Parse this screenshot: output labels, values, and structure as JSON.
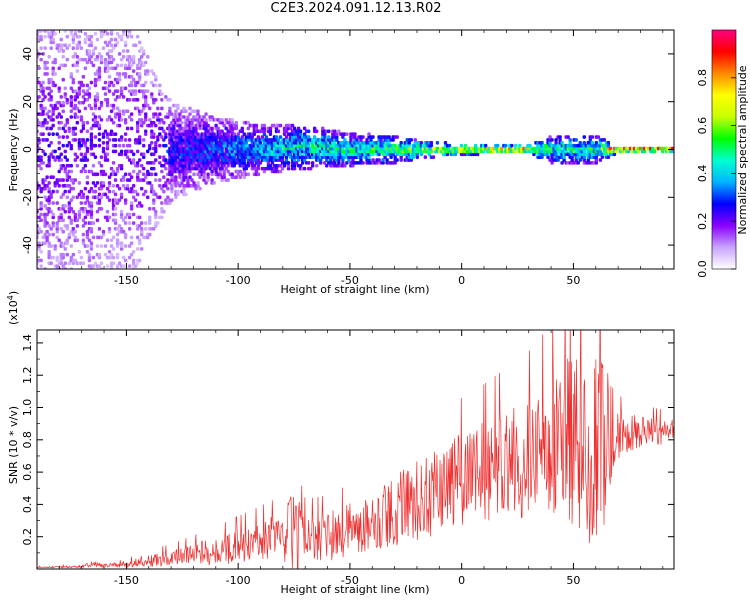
{
  "title": "C2E3.2024.091.12.13.R02",
  "chart_data": [
    {
      "type": "heatmap",
      "xlabel": "Height of straight line (km)",
      "ylabel": "Frequency (Hz)",
      "xlim": [
        -190,
        95
      ],
      "ylim": [
        -50,
        50
      ],
      "xticks": [
        -150,
        -100,
        -50,
        0,
        50
      ],
      "yticks": [
        -40,
        -20,
        0,
        20,
        40
      ],
      "colorbar": {
        "label": "Normalized spectral amplitude",
        "range": [
          0.0,
          1.0
        ],
        "ticks": [
          0.0,
          0.2,
          0.4,
          0.6,
          0.8
        ],
        "ticklabels": [
          "0.0",
          "0.2",
          "0.4",
          "0.6",
          "0.8"
        ],
        "colors": [
          "#ffffff",
          "#c9a3ff",
          "#8a00ff",
          "#0000ff",
          "#00b4ff",
          "#00ffd0",
          "#00ff00",
          "#c8ff00",
          "#ffff00",
          "#ff8800",
          "#ff0000",
          "#ff0080"
        ]
      },
      "ridge": {
        "x": [
          -190,
          -170,
          -150,
          -130,
          -110,
          -90,
          -70,
          -50,
          -30,
          -15,
          0,
          15,
          30,
          40,
          50,
          60,
          70,
          95
        ],
        "frequency": [
          0,
          0,
          0,
          -1,
          0,
          0,
          1,
          0,
          0,
          0,
          0,
          0,
          0,
          0,
          0,
          0,
          0,
          0
        ],
        "half_width": [
          50,
          50,
          50,
          18,
          12,
          9,
          8,
          6,
          5,
          3,
          2,
          1.5,
          1.5,
          5,
          5,
          5,
          1.2,
          1.2
        ],
        "amplitude": [
          0.22,
          0.22,
          0.2,
          0.28,
          0.33,
          0.42,
          0.48,
          0.5,
          0.55,
          0.65,
          0.75,
          0.85,
          0.88,
          0.5,
          0.55,
          0.5,
          0.98,
          0.98
        ]
      },
      "grid": false
    },
    {
      "type": "line",
      "xlabel": "Height of straight line (km)",
      "ylabel": "SNR (10 * v/v)",
      "yscale_label": "(x10",
      "yscale_exp": "4",
      "yscale_close": ")",
      "xlim": [
        -190,
        95
      ],
      "ylim": [
        0,
        1.48
      ],
      "xticks": [
        -150,
        -100,
        -50,
        0,
        50
      ],
      "yticks": [
        0.2,
        0.4,
        0.6,
        0.8,
        1.0,
        1.2,
        1.4
      ],
      "yticklabels": [
        "0.2",
        "0.4",
        "0.6",
        "0.8",
        "1.0",
        "1.2",
        "1.4"
      ],
      "color": "#f03030",
      "envelope": {
        "x": [
          -190,
          -170,
          -165,
          -160,
          -150,
          -140,
          -130,
          -120,
          -110,
          -100,
          -90,
          -80,
          -75,
          -70,
          -60,
          -50,
          -40,
          -30,
          -20,
          -10,
          0,
          10,
          20,
          30,
          40,
          45,
          50,
          55,
          60,
          65,
          70,
          80,
          90,
          95
        ],
        "mean": [
          0.01,
          0.015,
          0.03,
          0.02,
          0.03,
          0.05,
          0.07,
          0.09,
          0.11,
          0.14,
          0.17,
          0.2,
          0.22,
          0.18,
          0.2,
          0.24,
          0.3,
          0.36,
          0.42,
          0.5,
          0.55,
          0.6,
          0.65,
          0.7,
          0.75,
          0.8,
          0.8,
          0.8,
          0.78,
          0.75,
          0.82,
          0.85,
          0.85,
          0.85
        ],
        "spread": [
          0.004,
          0.008,
          0.02,
          0.01,
          0.02,
          0.04,
          0.05,
          0.07,
          0.09,
          0.11,
          0.13,
          0.15,
          0.28,
          0.15,
          0.15,
          0.17,
          0.2,
          0.22,
          0.25,
          0.28,
          0.3,
          0.32,
          0.35,
          0.38,
          0.45,
          0.5,
          0.55,
          0.6,
          0.7,
          0.55,
          0.15,
          0.1,
          0.08,
          0.08
        ]
      },
      "grid": false
    }
  ]
}
